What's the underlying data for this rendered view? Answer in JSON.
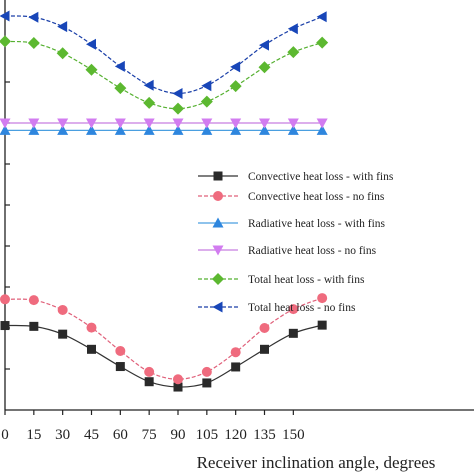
{
  "chart_data": {
    "type": "line",
    "title": "",
    "xlabel": "Receiver inclination angle, degrees",
    "ylabel": "",
    "x": [
      0,
      15,
      30,
      45,
      60,
      75,
      90,
      105,
      120,
      135,
      150,
      165
    ],
    "x_ticks": [
      "0",
      "15",
      "30",
      "45",
      "60",
      "75",
      "90",
      "105",
      "120",
      "135",
      "150"
    ],
    "xlim": [
      0,
      165
    ],
    "ylim": [
      0,
      100
    ],
    "grid": false,
    "legend_position": "center-right",
    "series": [
      {
        "name": "Convective heat loss - with fins",
        "marker": "square",
        "color": "#333333",
        "markerColor": "#2a2a2a",
        "dash": "none",
        "values": [
          20.6,
          20.4,
          18.5,
          14.8,
          10.6,
          6.9,
          5.6,
          6.6,
          10.5,
          14.8,
          18.7,
          20.7
        ]
      },
      {
        "name": "Convective heat loss - no fins",
        "marker": "circle",
        "color": "#e0607a",
        "markerColor": "#ef6b7e",
        "dash": "4,2",
        "values": [
          27.0,
          26.8,
          24.4,
          20.1,
          14.4,
          9.3,
          7.5,
          9.3,
          14.1,
          20.0,
          24.6,
          27.3
        ]
      },
      {
        "name": "Radiative heat loss - with fins",
        "marker": "triangle-up",
        "color": "#4a9fe0",
        "markerColor": "#2e86de",
        "dash": "none",
        "values": [
          68.2,
          68.2,
          68.2,
          68.2,
          68.2,
          68.2,
          68.2,
          68.2,
          68.2,
          68.2,
          68.2,
          68.2
        ]
      },
      {
        "name": "Radiative heat loss - no fins",
        "marker": "triangle-down",
        "color": "#c77de0",
        "markerColor": "#d27cf0",
        "dash": "none",
        "values": [
          70.0,
          70.0,
          70.0,
          70.0,
          70.0,
          70.0,
          70.0,
          70.0,
          70.0,
          70.0,
          70.0,
          70.0
        ]
      },
      {
        "name": "Total heat loss - with fins",
        "marker": "diamond",
        "color": "#55b030",
        "markerColor": "#5cb830",
        "dash": "4,2",
        "values": [
          89.9,
          89.5,
          87.0,
          83.0,
          78.5,
          74.9,
          73.5,
          75.2,
          79.0,
          83.6,
          87.3,
          89.6
        ]
      },
      {
        "name": "Total heat loss - no fins",
        "marker": "triangle-left",
        "color": "#1a3fa8",
        "markerColor": "#1846b8",
        "dash": "4,2",
        "values": [
          96.1,
          95.8,
          93.5,
          89.2,
          83.8,
          79.2,
          77.2,
          79.1,
          83.7,
          89.0,
          93.0,
          95.9
        ]
      }
    ]
  }
}
